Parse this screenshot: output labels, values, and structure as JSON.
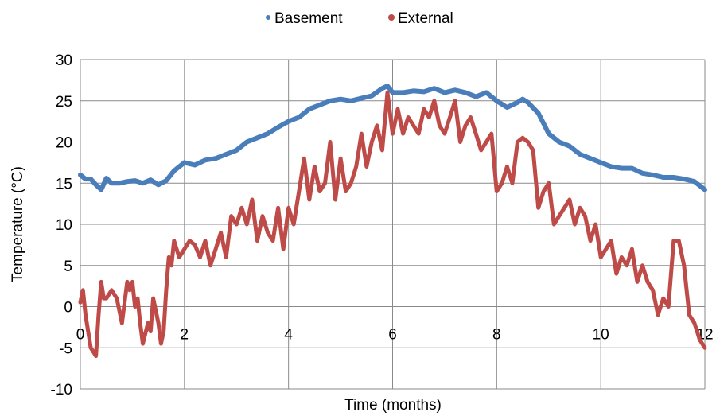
{
  "chart_data": {
    "type": "line",
    "title": "",
    "xlabel": "Time (months)",
    "ylabel": "Temperature (°C)",
    "xlim": [
      0,
      12
    ],
    "ylim": [
      -10,
      30
    ],
    "xticks": [
      0,
      2,
      4,
      6,
      8,
      10,
      12
    ],
    "yticks": [
      -10,
      -5,
      0,
      5,
      10,
      15,
      20,
      25,
      30
    ],
    "grid": true,
    "legend_position": "top",
    "series": [
      {
        "name": "Basement",
        "color": "#4a7ebb",
        "marker": "dot",
        "x": [
          0,
          0.1,
          0.2,
          0.3,
          0.4,
          0.5,
          0.6,
          0.75,
          0.9,
          1.05,
          1.2,
          1.35,
          1.5,
          1.65,
          1.8,
          2.0,
          2.2,
          2.4,
          2.6,
          2.8,
          3.0,
          3.2,
          3.4,
          3.6,
          3.8,
          4.0,
          4.2,
          4.4,
          4.6,
          4.8,
          5.0,
          5.2,
          5.4,
          5.6,
          5.8,
          5.9,
          6.0,
          6.2,
          6.4,
          6.6,
          6.8,
          7.0,
          7.2,
          7.4,
          7.6,
          7.8,
          8.0,
          8.2,
          8.4,
          8.5,
          8.6,
          8.8,
          9.0,
          9.2,
          9.4,
          9.6,
          9.8,
          10.0,
          10.2,
          10.4,
          10.6,
          10.8,
          11.0,
          11.2,
          11.4,
          11.6,
          11.8,
          12.0
        ],
        "values": [
          16,
          15.5,
          15.5,
          14.8,
          14.2,
          15.6,
          15,
          15,
          15.2,
          15.3,
          15,
          15.4,
          14.8,
          15.3,
          16.5,
          17.5,
          17.2,
          17.8,
          18,
          18.5,
          19,
          20,
          20.5,
          21,
          21.8,
          22.5,
          23,
          24,
          24.5,
          25,
          25.2,
          25,
          25.3,
          25.6,
          26.5,
          26.8,
          26,
          26,
          26.2,
          26.1,
          26.5,
          26,
          26.3,
          26,
          25.5,
          26,
          25,
          24.2,
          24.8,
          25.2,
          24.8,
          23.5,
          21,
          20,
          19.5,
          18.5,
          18,
          17.5,
          17,
          16.8,
          16.8,
          16.2,
          16,
          15.7,
          15.7,
          15.5,
          15.2,
          14.2
        ]
      },
      {
        "name": "External",
        "color": "#be4b48",
        "marker": "dot",
        "x": [
          0,
          0.05,
          0.1,
          0.15,
          0.2,
          0.25,
          0.3,
          0.35,
          0.4,
          0.45,
          0.5,
          0.6,
          0.7,
          0.8,
          0.9,
          0.95,
          1.0,
          1.05,
          1.1,
          1.15,
          1.2,
          1.3,
          1.35,
          1.4,
          1.5,
          1.55,
          1.6,
          1.65,
          1.7,
          1.75,
          1.8,
          1.85,
          1.9,
          2.0,
          2.1,
          2.2,
          2.3,
          2.4,
          2.5,
          2.6,
          2.7,
          2.8,
          2.9,
          3.0,
          3.1,
          3.2,
          3.3,
          3.4,
          3.5,
          3.6,
          3.7,
          3.8,
          3.9,
          4.0,
          4.1,
          4.2,
          4.3,
          4.4,
          4.5,
          4.6,
          4.7,
          4.8,
          4.9,
          5.0,
          5.1,
          5.2,
          5.3,
          5.4,
          5.5,
          5.6,
          5.7,
          5.8,
          5.9,
          6.0,
          6.1,
          6.2,
          6.3,
          6.4,
          6.5,
          6.6,
          6.7,
          6.8,
          6.9,
          7.0,
          7.1,
          7.2,
          7.3,
          7.4,
          7.5,
          7.6,
          7.7,
          7.8,
          7.9,
          8.0,
          8.1,
          8.2,
          8.3,
          8.4,
          8.5,
          8.6,
          8.7,
          8.8,
          8.9,
          9.0,
          9.1,
          9.2,
          9.3,
          9.4,
          9.5,
          9.6,
          9.7,
          9.8,
          9.9,
          10.0,
          10.1,
          10.2,
          10.3,
          10.4,
          10.5,
          10.6,
          10.7,
          10.8,
          10.9,
          11.0,
          11.1,
          11.2,
          11.3,
          11.4,
          11.5,
          11.6,
          11.7,
          11.8,
          11.9,
          12.0
        ],
        "values": [
          0.5,
          2,
          -1,
          -3,
          -5,
          -5.5,
          -6,
          -1,
          3,
          1,
          1,
          2,
          1,
          -2,
          3,
          2,
          3,
          0,
          1,
          -2,
          -4.5,
          -2,
          -3,
          1,
          -2,
          -4.5,
          -3,
          2,
          6,
          5,
          8,
          7,
          6,
          7,
          8,
          7.5,
          6,
          8,
          5,
          7,
          9,
          6,
          11,
          10,
          12,
          10,
          13,
          8,
          11,
          9,
          8,
          12,
          7,
          12,
          10,
          14,
          18,
          13,
          17,
          14,
          15,
          20,
          13,
          18,
          14,
          15,
          17,
          21,
          17,
          20,
          22,
          19,
          26,
          21,
          24,
          21,
          23,
          22,
          21,
          24,
          23,
          25,
          22,
          21,
          23,
          25,
          20,
          22,
          23,
          21,
          19,
          20,
          21,
          14,
          15,
          17,
          15,
          20,
          20.5,
          20,
          19,
          12,
          14,
          15,
          10,
          11,
          12,
          13,
          10,
          12,
          11,
          8,
          10,
          6,
          7,
          8,
          4,
          6,
          5,
          7,
          3,
          5,
          3,
          2,
          -1,
          1,
          0,
          8,
          8,
          5,
          -1,
          -2,
          -4,
          -5
        ]
      }
    ]
  }
}
